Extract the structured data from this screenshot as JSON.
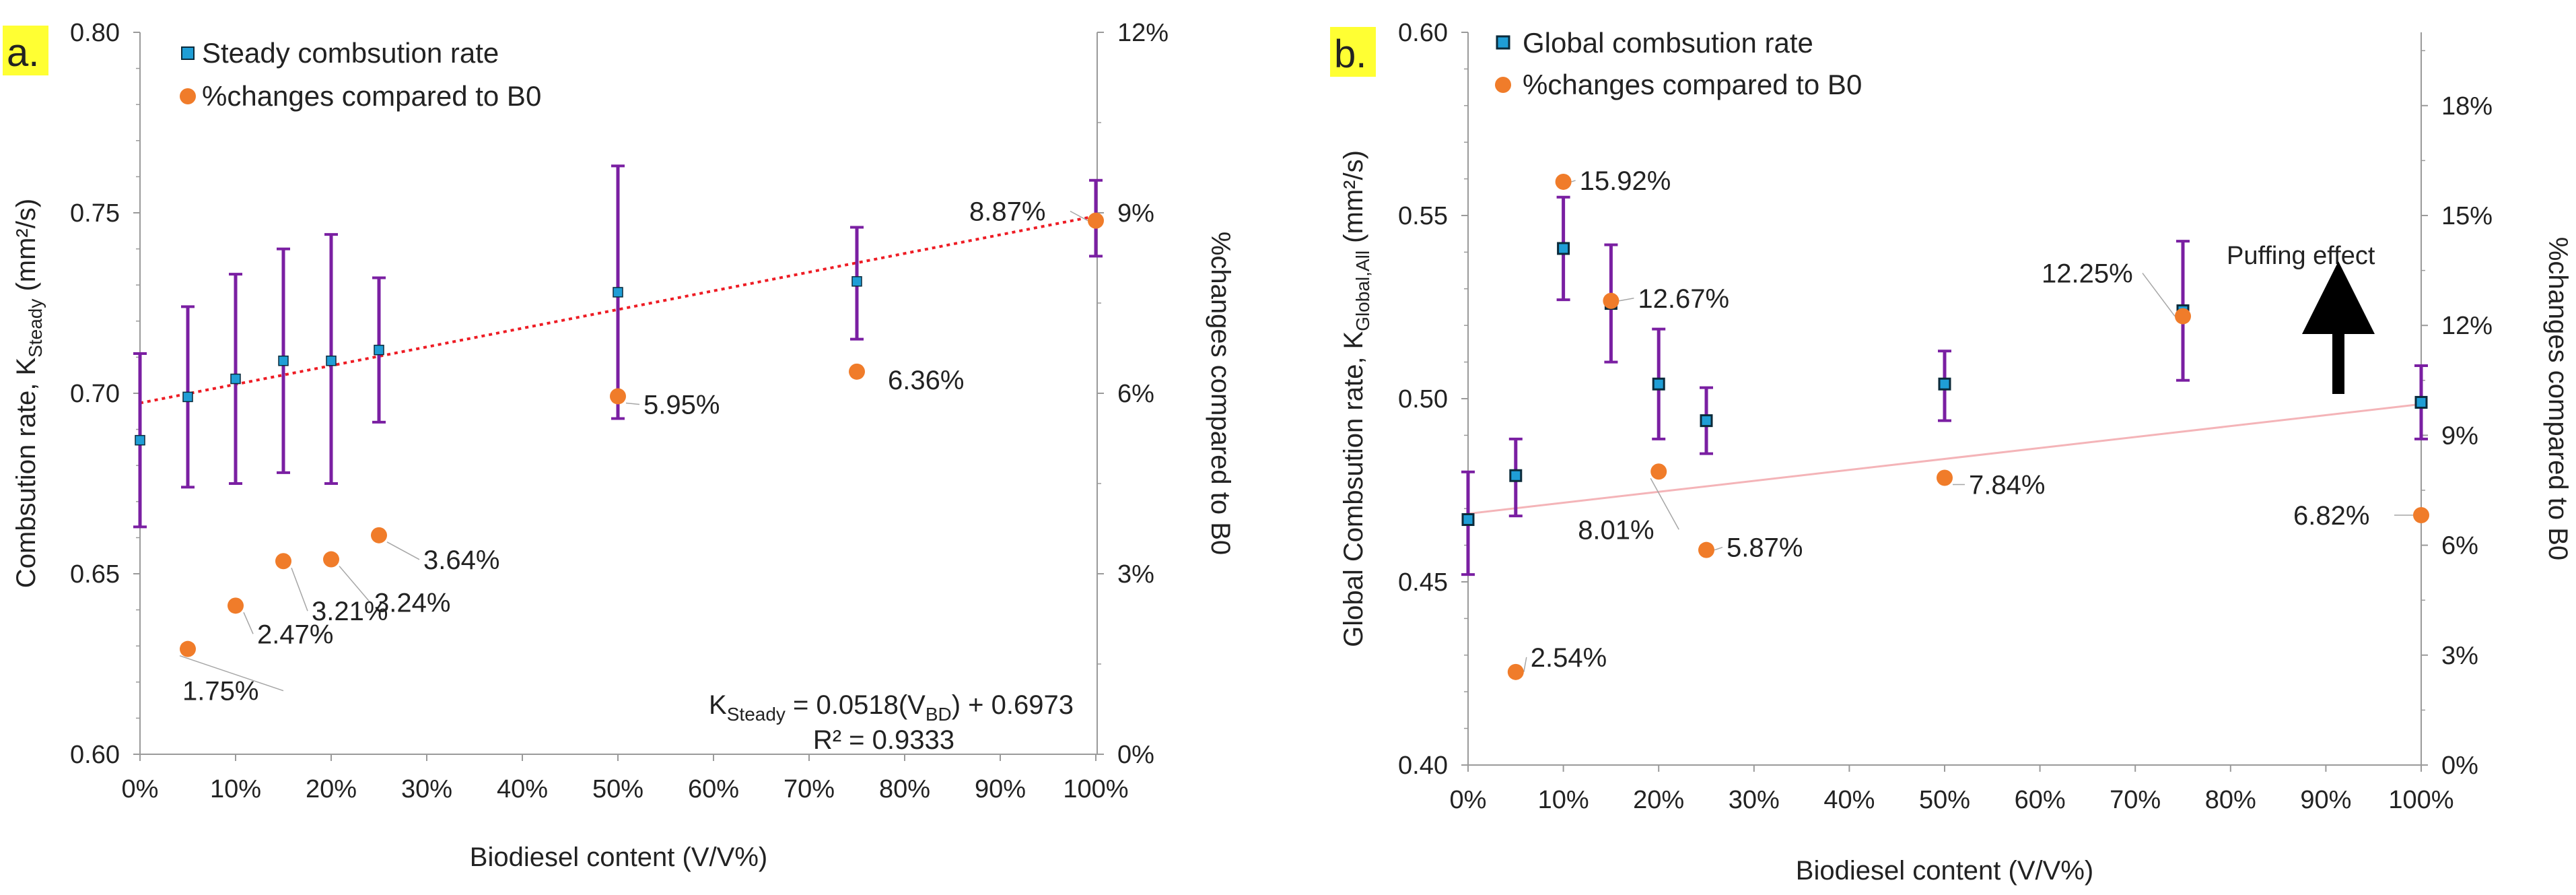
{
  "colors": {
    "steady_marker": "#1f9ed6",
    "global_marker": "#1f9ed6",
    "marker_edge": "#0b2a3a",
    "pct_marker": "#f07c2a",
    "errorbar": "#7a1fa2",
    "trend_a": "#ee1c24",
    "trend_b": "#f4b4b8",
    "panel_label_bg": "#ffff33",
    "axis": "#9a9a9a",
    "leader": "#a6a6a6",
    "arrow": "#000000"
  },
  "chart_data": [
    {
      "type": "scatter",
      "panel_label": "a.",
      "xlabel": "Biodiesel content (V/V%)",
      "ylabel_left_main": "Combsution rate, K",
      "ylabel_left_sub": "Steady",
      "ylabel_left_unit": " (mm²/s)",
      "ylabel_right": "%changes compared to B0",
      "x_ticks": [
        0,
        10,
        20,
        30,
        40,
        50,
        60,
        70,
        80,
        90,
        100
      ],
      "x_tick_labels": [
        "0%",
        "10%",
        "20%",
        "30%",
        "40%",
        "50%",
        "60%",
        "70%",
        "80%",
        "90%",
        "100%"
      ],
      "xlim": [
        0,
        100
      ],
      "ylim_left": [
        0.6,
        0.8
      ],
      "y_left_ticks": [
        0.6,
        0.65,
        0.7,
        0.75,
        0.8
      ],
      "y_left_tick_labels": [
        "0.60",
        "0.65",
        "0.70",
        "0.75",
        "0.80"
      ],
      "ylim_right": [
        0,
        12
      ],
      "y_right_ticks": [
        0,
        3,
        6,
        9,
        12
      ],
      "y_right_tick_labels": [
        "0%",
        "3%",
        "6%",
        "9%",
        "12%"
      ],
      "legend": [
        "Steady combsution rate",
        "%changes compared to B0"
      ],
      "legend_position": "top-left",
      "series": [
        {
          "name": "Steady combsution rate",
          "axis": "left",
          "x": [
            0,
            5,
            10,
            15,
            20,
            25,
            50,
            75,
            100
          ],
          "values": [
            0.687,
            0.699,
            0.704,
            0.709,
            0.709,
            0.712,
            0.728,
            0.731,
            0.748
          ],
          "err_low": [
            0.663,
            0.674,
            0.675,
            0.678,
            0.675,
            0.692,
            0.693,
            0.715,
            0.738
          ],
          "err_high": [
            0.711,
            0.724,
            0.733,
            0.74,
            0.744,
            0.732,
            0.763,
            0.746,
            0.759
          ]
        },
        {
          "name": "%changes compared to B0",
          "axis": "right",
          "x": [
            5,
            10,
            15,
            20,
            25,
            50,
            75,
            100
          ],
          "values": [
            1.75,
            2.47,
            3.21,
            3.24,
            3.64,
            5.95,
            6.36,
            8.87
          ],
          "labels": [
            "1.75%",
            "2.47%",
            "3.21%",
            "3.24%",
            "3.64%",
            "5.95%",
            "6.36%",
            "8.87%"
          ]
        }
      ],
      "trendline": {
        "x": [
          0,
          100
        ],
        "values": [
          0.6973,
          0.7491
        ]
      },
      "equation_main": "K",
      "equation_sub": "Steady",
      "equation_rest": " = 0.0518(V",
      "equation_sub2": "BD",
      "equation_end": ") + 0.6973",
      "r_squared": "R² = 0.9333"
    },
    {
      "type": "scatter",
      "panel_label": "b.",
      "xlabel": "Biodiesel content (V/V%)",
      "ylabel_left_main": "Global Combsution rate, K",
      "ylabel_left_sub": "Global,All",
      "ylabel_left_unit": " (mm²/s)",
      "ylabel_right": "%changes compared to B0",
      "x_ticks": [
        0,
        10,
        20,
        30,
        40,
        50,
        60,
        70,
        80,
        90,
        100
      ],
      "x_tick_labels": [
        "0%",
        "10%",
        "20%",
        "30%",
        "40%",
        "50%",
        "60%",
        "70%",
        "80%",
        "90%",
        "100%"
      ],
      "xlim": [
        0,
        100
      ],
      "ylim_left": [
        0.4,
        0.6
      ],
      "y_left_ticks": [
        0.4,
        0.45,
        0.5,
        0.55,
        0.6
      ],
      "y_left_tick_labels": [
        "0.40",
        "0.45",
        "0.50",
        "0.55",
        "0.60"
      ],
      "ylim_right": [
        0,
        20
      ],
      "y_right_ticks": [
        0,
        3,
        6,
        9,
        12,
        15,
        18
      ],
      "y_right_tick_labels": [
        "0%",
        "3%",
        "6%",
        "9%",
        "12%",
        "15%",
        "18%"
      ],
      "legend": [
        "Global combsution rate",
        "%changes compared to B0"
      ],
      "legend_position": "top-left",
      "annotation": "Puffing effect",
      "series": [
        {
          "name": "Global combsution rate",
          "axis": "left",
          "x": [
            0,
            5,
            10,
            15,
            20,
            25,
            50,
            75,
            100
          ],
          "values": [
            0.467,
            0.479,
            0.541,
            0.526,
            0.504,
            0.494,
            0.504,
            0.524,
            0.499
          ],
          "err_low": [
            0.452,
            0.468,
            0.527,
            0.51,
            0.489,
            0.485,
            0.494,
            0.505,
            0.489
          ],
          "err_high": [
            0.48,
            0.489,
            0.555,
            0.542,
            0.519,
            0.503,
            0.513,
            0.543,
            0.509
          ]
        },
        {
          "name": "%changes compared to B0",
          "axis": "right",
          "x": [
            5,
            10,
            15,
            20,
            25,
            50,
            75,
            100
          ],
          "values": [
            2.54,
            15.92,
            12.67,
            8.01,
            5.87,
            7.84,
            12.25,
            6.82
          ],
          "labels": [
            "2.54%",
            "15.92%",
            "12.67%",
            "8.01%",
            "5.87%",
            "7.84%",
            "12.25%",
            "6.82%"
          ]
        }
      ],
      "trendline": {
        "x": [
          0,
          100
        ],
        "values": [
          0.4686,
          0.4985
        ]
      }
    }
  ]
}
